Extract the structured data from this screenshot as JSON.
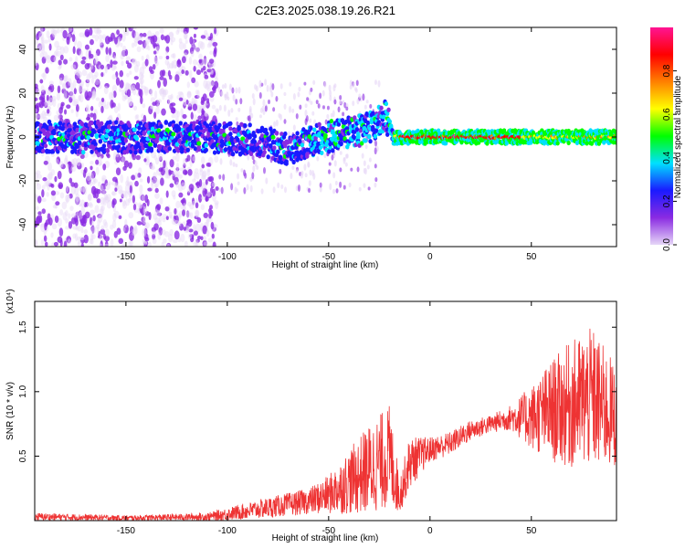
{
  "title": "C2E3.2025.038.19.26.R21",
  "chart_data": [
    {
      "type": "heatmap",
      "xlabel": "Height of straight line (km)",
      "ylabel": "Frequency (Hz)",
      "xlim": [
        -195,
        92
      ],
      "ylim": [
        -50,
        50
      ],
      "xticks": [
        -150,
        -100,
        -50,
        0,
        50
      ],
      "yticks": [
        -40,
        -20,
        0,
        20,
        40
      ],
      "grid": false,
      "colorbar": {
        "label": "Normalized spectral amplitude",
        "ticks": [
          "0.0",
          "0.2",
          "0.4",
          "0.6",
          "0.8"
        ],
        "tick_values": [
          0.0,
          0.2,
          0.4,
          0.6,
          0.8
        ],
        "range": [
          0.0,
          1.0
        ],
        "colors": [
          "#e6d6f7",
          "#8a2be2",
          "#1a1aff",
          "#00e0ff",
          "#00ff00",
          "#ffff00",
          "#ff8000",
          "#ff0000",
          "#ff1493"
        ]
      },
      "band_center_hz": [
        {
          "x": -190,
          "y": 0
        },
        {
          "x": -150,
          "y": 0
        },
        {
          "x": -110,
          "y": 0
        },
        {
          "x": -80,
          "y": -2
        },
        {
          "x": -70,
          "y": -6
        },
        {
          "x": -60,
          "y": -2
        },
        {
          "x": -50,
          "y": 0
        },
        {
          "x": -40,
          "y": 2
        },
        {
          "x": -30,
          "y": 4
        },
        {
          "x": -22,
          "y": 10
        },
        {
          "x": -18,
          "y": 0
        },
        {
          "x": 0,
          "y": 0
        },
        {
          "x": 30,
          "y": 0
        },
        {
          "x": 60,
          "y": 0
        },
        {
          "x": 90,
          "y": 0
        }
      ]
    },
    {
      "type": "line",
      "xlabel": "Height of straight line (km)",
      "ylabel": "SNR (10 * v/v)",
      "y_multiplier": "(x10⁴)",
      "xlim": [
        -195,
        92
      ],
      "ylim": [
        0,
        17000
      ],
      "xticks": [
        -150,
        -100,
        -50,
        0,
        50
      ],
      "ytick_labels": [
        "0.5",
        "1.0",
        "1.5"
      ],
      "ytick_values": [
        5000,
        10000,
        15000
      ],
      "grid": false,
      "series": [
        {
          "color": "#ee3333",
          "x": [
            -195,
            -150,
            -110,
            -100,
            -80,
            -60,
            -50,
            -40,
            -30,
            -20,
            -15,
            -10,
            0,
            10,
            20,
            30,
            40,
            50,
            60,
            70,
            80,
            92
          ],
          "mean": [
            300,
            200,
            300,
            500,
            1000,
            1500,
            2000,
            3000,
            4000,
            5000,
            2000,
            4500,
            5500,
            6000,
            7000,
            7500,
            8000,
            8000,
            8500,
            9000,
            9500,
            8000
          ],
          "amp": [
            300,
            200,
            300,
            500,
            800,
            1000,
            1500,
            2500,
            3500,
            4000,
            1500,
            2000,
            1000,
            900,
            800,
            700,
            1000,
            2500,
            4000,
            5000,
            5500,
            4000
          ]
        }
      ]
    }
  ]
}
